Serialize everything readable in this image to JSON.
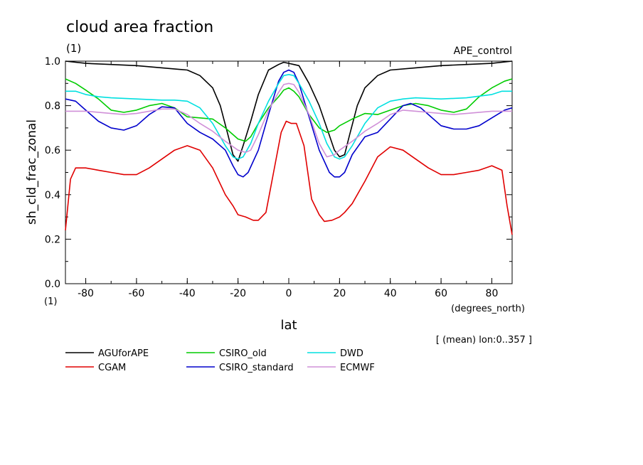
{
  "chart_data": {
    "type": "line",
    "title": "cloud area fraction",
    "subtitle": "(1)",
    "run_label": "APE_control",
    "xlabel": "lat",
    "x_units": "(degrees_north)",
    "ylabel": "sh_cld_frac_zonal",
    "y_units": "(1)",
    "footer": "[ (mean) lon:0..357 ]",
    "xlim": [
      -88,
      88
    ],
    "ylim": [
      0,
      1
    ],
    "x_ticks": [
      -80,
      -60,
      -40,
      -20,
      0,
      20,
      40,
      60,
      80
    ],
    "x_tick_labels": [
      "-80",
      "-60",
      "-40",
      "-20",
      "0",
      "20",
      "40",
      "60",
      "80"
    ],
    "y_ticks": [
      0,
      0.2,
      0.4,
      0.6,
      0.8,
      1.0
    ],
    "y_tick_labels": [
      "0.0",
      "0.2",
      "0.4",
      "0.6",
      "0.8",
      "1.0"
    ],
    "grid": false,
    "legend_position": "bottom",
    "series": [
      {
        "name": "AGUforAPE",
        "color": "#000000",
        "x": [
          -88,
          -80,
          -70,
          -60,
          -50,
          -40,
          -35,
          -30,
          -27,
          -24,
          -22,
          -20,
          -18,
          -15,
          -12,
          -8,
          -4,
          -2,
          0,
          2,
          4,
          8,
          12,
          15,
          18,
          20,
          22,
          24,
          27,
          30,
          35,
          40,
          50,
          60,
          70,
          80,
          88
        ],
        "y": [
          1.0,
          0.99,
          0.985,
          0.98,
          0.97,
          0.96,
          0.935,
          0.88,
          0.8,
          0.67,
          0.58,
          0.55,
          0.62,
          0.73,
          0.85,
          0.96,
          0.985,
          0.995,
          0.99,
          0.985,
          0.98,
          0.9,
          0.8,
          0.7,
          0.6,
          0.57,
          0.58,
          0.67,
          0.8,
          0.88,
          0.935,
          0.96,
          0.97,
          0.98,
          0.985,
          0.99,
          1.0
        ]
      },
      {
        "name": "CGAM",
        "color": "#e00000",
        "x": [
          -88,
          -86,
          -84,
          -80,
          -75,
          -70,
          -65,
          -60,
          -55,
          -50,
          -45,
          -40,
          -35,
          -30,
          -25,
          -22,
          -20,
          -17,
          -14,
          -12,
          -9,
          -6,
          -3,
          -1,
          1,
          3,
          6,
          9,
          12,
          14,
          17,
          20,
          22,
          25,
          30,
          35,
          40,
          45,
          50,
          55,
          60,
          65,
          70,
          75,
          80,
          84,
          86,
          88
        ],
        "y": [
          0.24,
          0.47,
          0.52,
          0.52,
          0.51,
          0.5,
          0.49,
          0.49,
          0.52,
          0.56,
          0.6,
          0.62,
          0.6,
          0.52,
          0.4,
          0.35,
          0.31,
          0.3,
          0.285,
          0.285,
          0.32,
          0.5,
          0.68,
          0.73,
          0.72,
          0.72,
          0.62,
          0.38,
          0.31,
          0.28,
          0.285,
          0.3,
          0.32,
          0.36,
          0.46,
          0.57,
          0.615,
          0.6,
          0.56,
          0.52,
          0.49,
          0.49,
          0.5,
          0.51,
          0.53,
          0.51,
          0.35,
          0.22
        ]
      },
      {
        "name": "CSIRO_old",
        "color": "#00cc00",
        "x": [
          -88,
          -84,
          -80,
          -75,
          -70,
          -65,
          -60,
          -55,
          -50,
          -45,
          -40,
          -35,
          -30,
          -25,
          -20,
          -17,
          -15,
          -12,
          -8,
          -4,
          -2,
          0,
          2,
          4,
          8,
          12,
          15,
          18,
          20,
          25,
          30,
          35,
          40,
          45,
          50,
          55,
          60,
          65,
          70,
          75,
          80,
          85,
          88
        ],
        "y": [
          0.92,
          0.9,
          0.87,
          0.83,
          0.78,
          0.77,
          0.78,
          0.8,
          0.81,
          0.79,
          0.75,
          0.745,
          0.74,
          0.7,
          0.65,
          0.64,
          0.66,
          0.72,
          0.79,
          0.84,
          0.87,
          0.88,
          0.865,
          0.84,
          0.76,
          0.7,
          0.68,
          0.69,
          0.71,
          0.74,
          0.765,
          0.76,
          0.78,
          0.8,
          0.81,
          0.8,
          0.78,
          0.77,
          0.785,
          0.84,
          0.88,
          0.91,
          0.92
        ]
      },
      {
        "name": "CSIRO_standard",
        "color": "#0000cc",
        "x": [
          -88,
          -84,
          -80,
          -75,
          -70,
          -65,
          -60,
          -55,
          -50,
          -45,
          -40,
          -35,
          -30,
          -25,
          -22,
          -20,
          -18,
          -16,
          -12,
          -8,
          -4,
          -2,
          0,
          2,
          4,
          8,
          12,
          16,
          18,
          20,
          22,
          25,
          30,
          35,
          40,
          45,
          48,
          52,
          55,
          60,
          65,
          70,
          75,
          80,
          85,
          88
        ],
        "y": [
          0.83,
          0.82,
          0.78,
          0.73,
          0.7,
          0.69,
          0.71,
          0.76,
          0.795,
          0.79,
          0.72,
          0.68,
          0.65,
          0.6,
          0.53,
          0.49,
          0.48,
          0.5,
          0.6,
          0.76,
          0.91,
          0.95,
          0.96,
          0.95,
          0.9,
          0.75,
          0.6,
          0.5,
          0.48,
          0.48,
          0.5,
          0.58,
          0.66,
          0.68,
          0.74,
          0.8,
          0.81,
          0.79,
          0.76,
          0.71,
          0.695,
          0.695,
          0.71,
          0.745,
          0.78,
          0.79
        ]
      },
      {
        "name": "DWD",
        "color": "#00e0e0",
        "x": [
          -88,
          -84,
          -80,
          -75,
          -70,
          -60,
          -50,
          -45,
          -40,
          -35,
          -30,
          -25,
          -22,
          -20,
          -18,
          -15,
          -12,
          -8,
          -4,
          -2,
          0,
          2,
          4,
          8,
          12,
          15,
          18,
          20,
          22,
          25,
          30,
          35,
          40,
          45,
          50,
          60,
          70,
          80,
          84,
          88
        ],
        "y": [
          0.865,
          0.865,
          0.85,
          0.84,
          0.835,
          0.83,
          0.825,
          0.825,
          0.82,
          0.79,
          0.72,
          0.62,
          0.57,
          0.56,
          0.57,
          0.63,
          0.72,
          0.82,
          0.9,
          0.935,
          0.94,
          0.935,
          0.9,
          0.82,
          0.72,
          0.63,
          0.57,
          0.56,
          0.57,
          0.62,
          0.72,
          0.79,
          0.82,
          0.83,
          0.835,
          0.83,
          0.835,
          0.85,
          0.865,
          0.865
        ]
      },
      {
        "name": "ECMWF",
        "color": "#d090d8",
        "x": [
          -88,
          -80,
          -70,
          -65,
          -60,
          -55,
          -50,
          -45,
          -40,
          -35,
          -30,
          -25,
          -20,
          -17,
          -15,
          -12,
          -8,
          -4,
          -2,
          0,
          2,
          4,
          8,
          12,
          15,
          18,
          20,
          25,
          30,
          35,
          40,
          45,
          50,
          55,
          60,
          65,
          70,
          80,
          88
        ],
        "y": [
          0.775,
          0.775,
          0.765,
          0.76,
          0.765,
          0.775,
          0.785,
          0.785,
          0.76,
          0.72,
          0.685,
          0.64,
          0.6,
          0.59,
          0.6,
          0.67,
          0.78,
          0.86,
          0.895,
          0.9,
          0.895,
          0.86,
          0.76,
          0.63,
          0.57,
          0.58,
          0.6,
          0.64,
          0.685,
          0.72,
          0.76,
          0.78,
          0.775,
          0.77,
          0.765,
          0.76,
          0.765,
          0.775,
          0.775
        ]
      }
    ]
  }
}
